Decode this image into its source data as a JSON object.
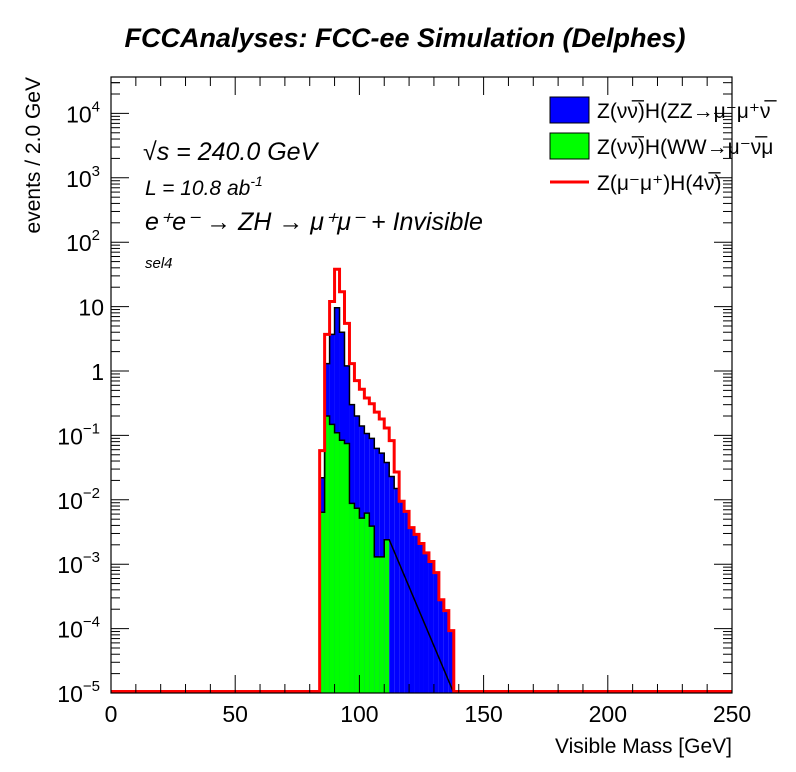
{
  "title": "FCCAnalyses: FCC-ee Simulation (Delphes)",
  "annotations": {
    "energy": "√s = 240.0 GeV",
    "lumi_base": "L = 10.8 ab",
    "lumi_exp": "-1",
    "process": "e⁺e⁻ → ZH → μ⁺μ⁻ + Invisible",
    "selection": "sel4"
  },
  "chart_data": {
    "type": "histogram",
    "title": "FCCAnalyses: FCC-ee Simulation (Delphes)",
    "xlabel": "Visible Mass [GeV]",
    "ylabel": "events / 2.0 GeV",
    "xlim": [
      0,
      250
    ],
    "ylim": [
      1e-05,
      36000
    ],
    "yscale": "log",
    "bin_width": 2.0,
    "x_ticks": [
      0,
      50,
      100,
      150,
      200,
      250
    ],
    "x_tick_labels": [
      "0",
      "50",
      "100",
      "150",
      "200",
      "250"
    ],
    "y_ticks": [
      {
        "value": 10000.0,
        "base": "10",
        "exp": "4"
      },
      {
        "value": 1000.0,
        "base": "10",
        "exp": "3"
      },
      {
        "value": 100.0,
        "base": "10",
        "exp": "2"
      },
      {
        "value": 10,
        "base": "10",
        "exp": ""
      },
      {
        "value": 1,
        "base": "1",
        "exp": ""
      },
      {
        "value": 0.1,
        "base": "10",
        "exp": "−1"
      },
      {
        "value": 0.01,
        "base": "10",
        "exp": "−2"
      },
      {
        "value": 0.001,
        "base": "10",
        "exp": "−3"
      },
      {
        "value": 0.0001,
        "base": "10",
        "exp": "−4"
      },
      {
        "value": 1e-05,
        "base": "10",
        "exp": "−5"
      }
    ],
    "bin_lower_edges": [
      84,
      86,
      88,
      90,
      92,
      94,
      96,
      98,
      100,
      102,
      104,
      106,
      108,
      110,
      112,
      114,
      116,
      118,
      120,
      122,
      124,
      126,
      128,
      130,
      132,
      134,
      136
    ],
    "legend_position": "top-right",
    "series": [
      {
        "name": "Z(νν̅)H(ZZ→μ⁻μ⁺νν̅)",
        "legend_label": "Z(νν̅)H(ZZ→μ⁻μ⁺ν̅",
        "style": "filled-stacked",
        "color": "#0000ff",
        "stacked_values": [
          0.022,
          1.3,
          3.7,
          9.6,
          4.0,
          1.2,
          0.3,
          0.2,
          0.14,
          0.107,
          0.09,
          0.063,
          0.053,
          0.038,
          0.023,
          0.015,
          0.0095,
          0.0066,
          0.0037,
          0.0029,
          0.0021,
          0.0015,
          0.0011,
          0.00074,
          0.00028,
          0.00019,
          9.3e-05
        ]
      },
      {
        "name": "Z(νν̅)H(WW→μ⁻ν̅μ⁺ν)",
        "legend_label": "Z(νν̅)H(WW→μ⁻ν̅μ",
        "style": "filled",
        "color": "#00ff00",
        "values": [
          0.0064,
          0.2,
          0.148,
          0.11,
          0.084,
          0.075,
          0.0088,
          0.0074,
          0.0052,
          0.0062,
          0.0039,
          0.0013,
          0.0013,
          0.0024,
          0,
          0,
          0,
          0,
          0,
          0,
          0,
          0,
          0,
          0,
          0,
          0,
          0
        ]
      },
      {
        "name": "Z(μ⁻μ⁺)H(4ν)",
        "legend_label": "Z(μ⁻μ⁺)H(4ν̅)",
        "style": "line",
        "color": "#ff0000",
        "values": [
          0.058,
          3.7,
          12,
          38,
          17,
          5.5,
          1.3,
          0.71,
          0.52,
          0.38,
          0.31,
          0.23,
          0.18,
          0.13,
          0.083,
          0.027,
          0.0095,
          0.0066,
          0.0037,
          0.0029,
          0.0021,
          0.0015,
          0.0011,
          0.00074,
          0.00028,
          0.00019,
          9.3e-05
        ]
      }
    ]
  }
}
